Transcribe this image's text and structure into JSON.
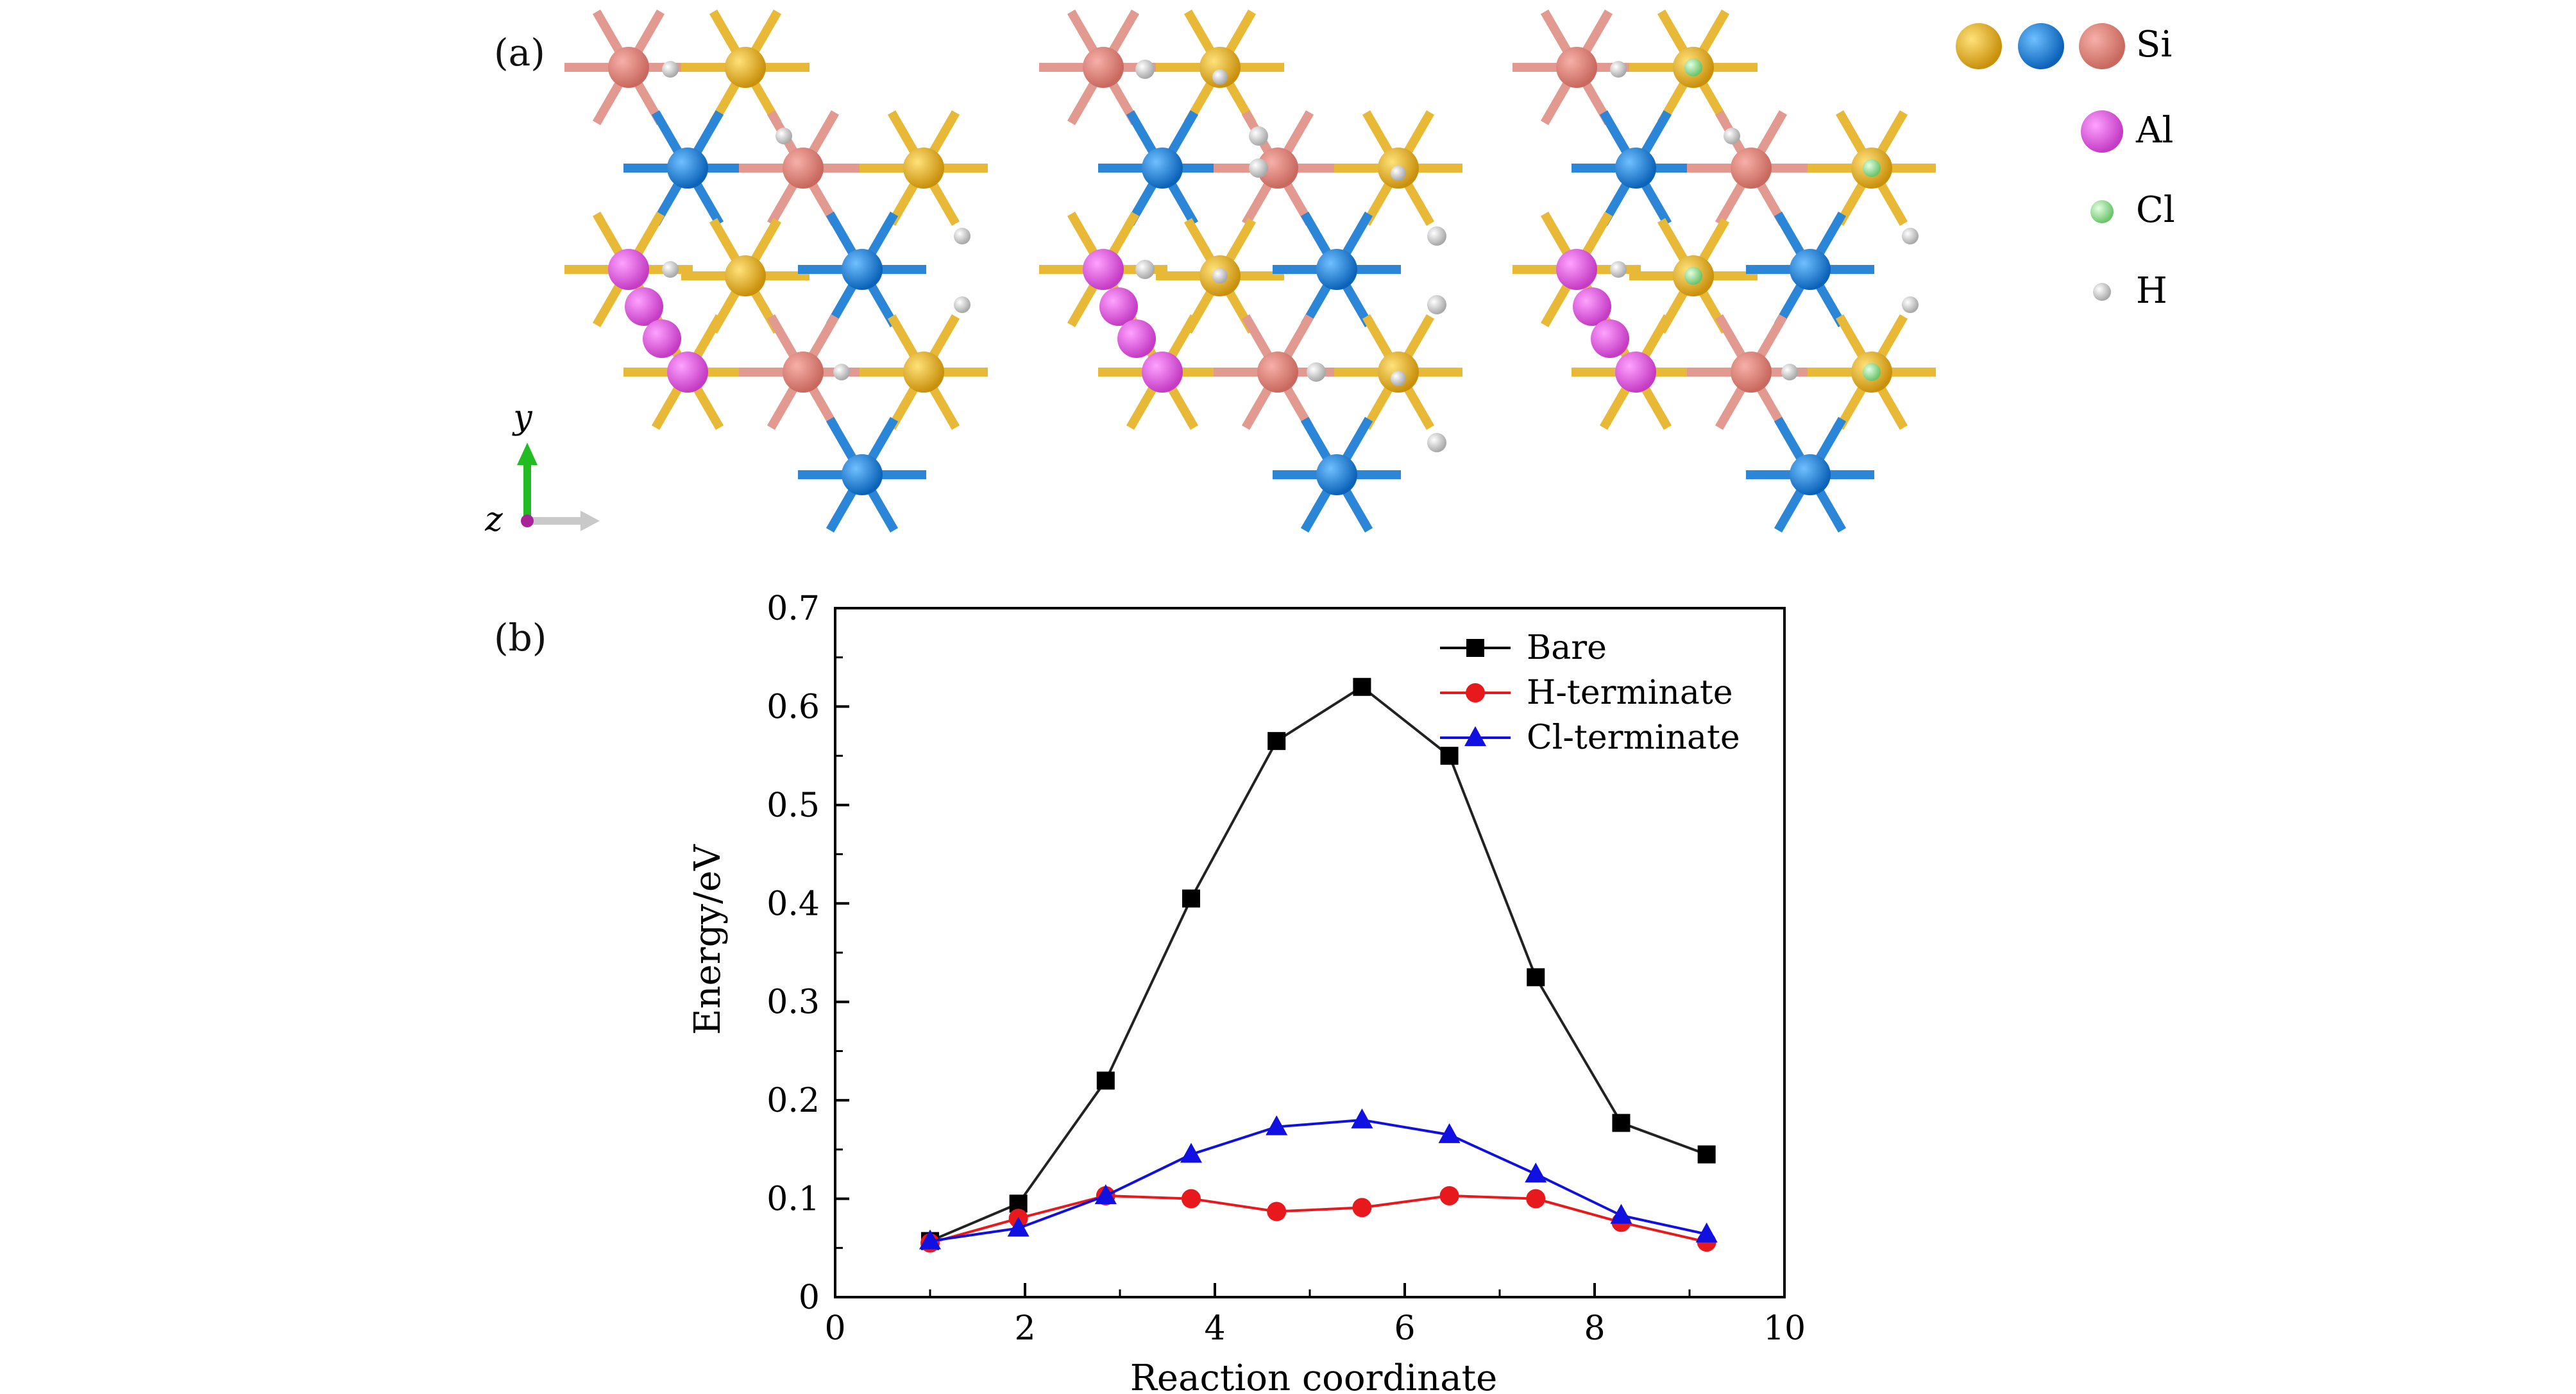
{
  "panels": {
    "a": "(a)",
    "b": "(b)"
  },
  "axes_indicator": {
    "y": "y",
    "z": "z"
  },
  "atom_legend": {
    "si": "Si",
    "al": "Al",
    "cl": "Cl",
    "h": "H"
  },
  "colors": {
    "si_gold": "#e4b21f",
    "si_blue": "#1a7bd6",
    "si_pink": "#e48a80",
    "al": "#e45ee4",
    "cl": "#9be89b",
    "h": "#f2f2f2",
    "bond_gold": "#e8b937",
    "bond_blue": "#2b86d8",
    "bond_pink": "#e29a90"
  },
  "chart_data": {
    "type": "line",
    "xlabel": "Reaction coordinate",
    "ylabel": "Energy/eV",
    "xlim": [
      0,
      10
    ],
    "ylim": [
      0,
      0.7
    ],
    "x_ticks": [
      "0",
      "2",
      "4",
      "6",
      "8",
      "10"
    ],
    "y_ticks": [
      "0",
      "0.1",
      "0.2",
      "0.3",
      "0.4",
      "0.5",
      "0.6",
      "0.7"
    ],
    "legend_position": "top-right",
    "grid": false,
    "x": [
      1.0,
      1.93,
      2.85,
      3.75,
      4.65,
      5.55,
      6.47,
      7.38,
      8.28,
      9.18
    ],
    "series": [
      {
        "name": "Bare",
        "color": "#000000",
        "marker": "square",
        "values": [
          0.057,
          0.095,
          0.22,
          0.405,
          0.565,
          0.62,
          0.55,
          0.325,
          0.177,
          0.145
        ]
      },
      {
        "name": "H-terminate",
        "color": "#e8191c",
        "marker": "circle",
        "values": [
          0.055,
          0.08,
          0.103,
          0.1,
          0.087,
          0.091,
          0.103,
          0.1,
          0.076,
          0.056
        ]
      },
      {
        "name": "Cl-terminate",
        "color": "#1010e0",
        "marker": "triangle",
        "values": [
          0.057,
          0.07,
          0.103,
          0.145,
          0.173,
          0.18,
          0.165,
          0.125,
          0.083,
          0.064
        ]
      }
    ]
  }
}
